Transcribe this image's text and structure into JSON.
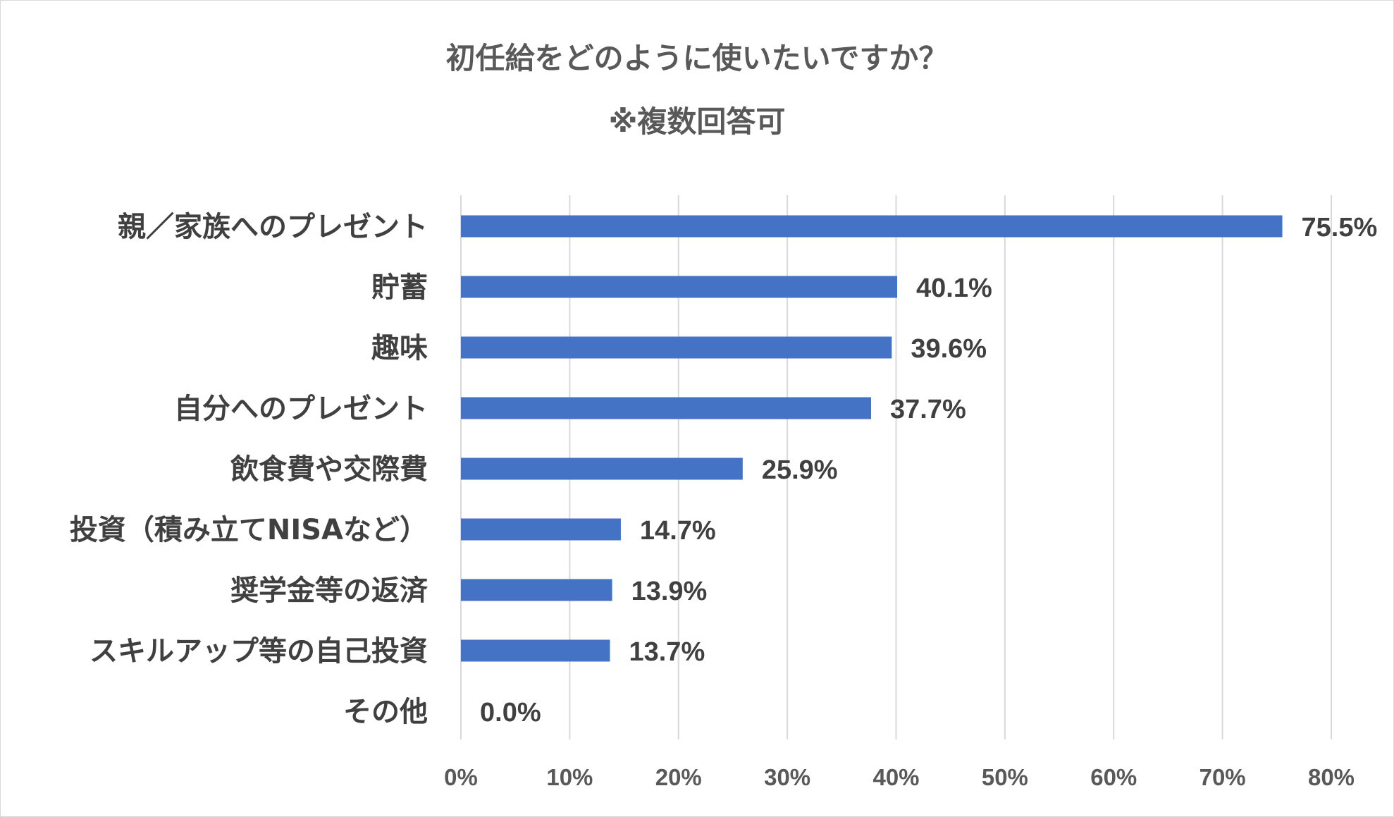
{
  "chart_data": {
    "type": "bar",
    "orientation": "horizontal",
    "title": "初任給をどのように使いたいですか？",
    "subtitle": "※複数回答可",
    "categories": [
      "親／家族へのプレゼント",
      "貯蓄",
      "趣味",
      "自分へのプレゼント",
      "飲食費や交際費",
      "投資（積み立てNISAなど）",
      "奨学金等の返済",
      "スキルアップ等の自己投資",
      "その他"
    ],
    "values": [
      75.5,
      40.1,
      39.6,
      37.7,
      25.9,
      14.7,
      13.9,
      13.7,
      0.0
    ],
    "value_labels": [
      "75.5%",
      "40.1%",
      "39.6%",
      "37.7%",
      "25.9%",
      "14.7%",
      "13.9%",
      "13.7%",
      "0.0%"
    ],
    "xlim": [
      0,
      80
    ],
    "x_ticks": [
      0,
      10,
      20,
      30,
      40,
      50,
      60,
      70,
      80
    ],
    "x_tick_labels": [
      "0%",
      "10%",
      "20%",
      "30%",
      "40%",
      "50%",
      "60%",
      "70%",
      "80%"
    ],
    "grid": true,
    "legend": "none",
    "bar_color": "#4472c4"
  }
}
